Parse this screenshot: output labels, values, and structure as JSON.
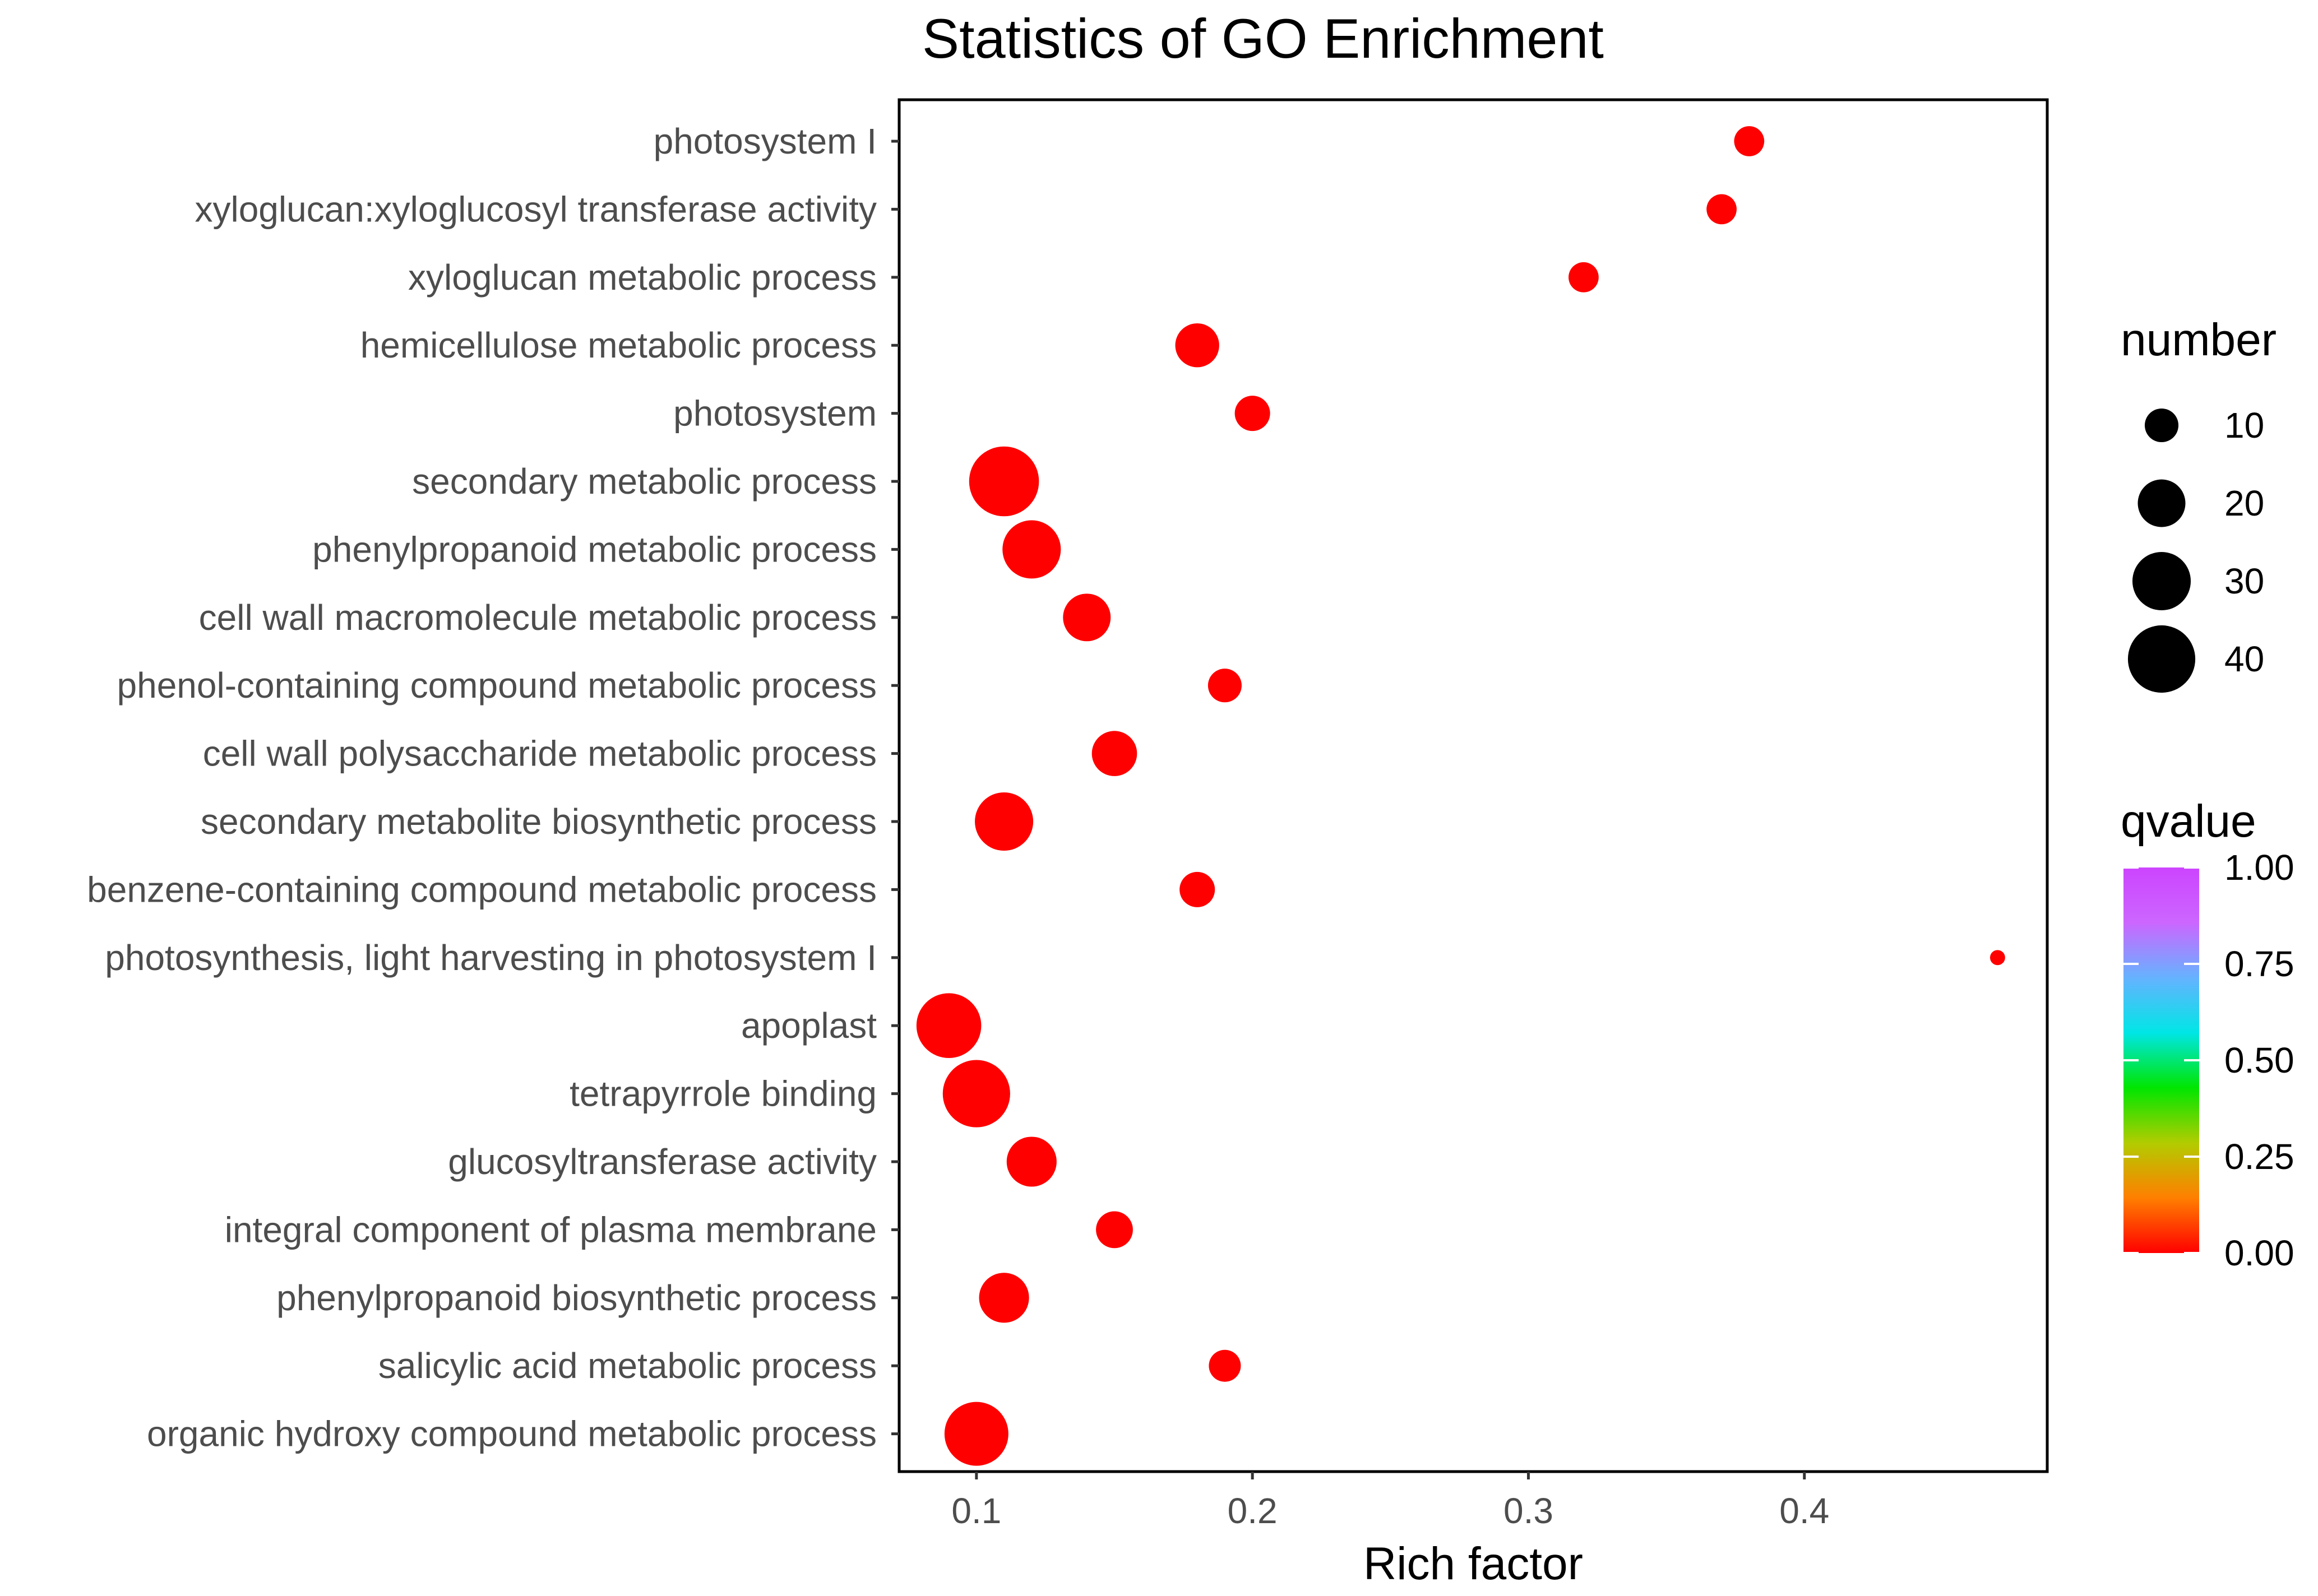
{
  "chart_data": {
    "type": "scatter",
    "title": "Statistics of GO Enrichment",
    "xlabel": "Rich factor",
    "ylabel": "",
    "xlim": [
      0.072,
      0.488
    ],
    "x_ticks": [
      0.1,
      0.2,
      0.3,
      0.4
    ],
    "x_tick_labels": [
      "0.1",
      "0.2",
      "0.3",
      "0.4"
    ],
    "grid": false,
    "point_color": "#ff0000",
    "points": [
      {
        "term": "photosystem I",
        "rich_factor": 0.38,
        "number": 8,
        "qvalue": 0.0
      },
      {
        "term": "xyloglucan:xyloglucosyl transferase activity",
        "rich_factor": 0.37,
        "number": 8,
        "qvalue": 0.0
      },
      {
        "term": "xyloglucan metabolic process",
        "rich_factor": 0.32,
        "number": 8,
        "qvalue": 0.0
      },
      {
        "term": "hemicellulose metabolic process",
        "rich_factor": 0.18,
        "number": 17,
        "qvalue": 0.0
      },
      {
        "term": "photosystem",
        "rich_factor": 0.2,
        "number": 11,
        "qvalue": 0.0
      },
      {
        "term": "secondary metabolic process",
        "rich_factor": 0.11,
        "number": 43,
        "qvalue": 0.0
      },
      {
        "term": "phenylpropanoid metabolic process",
        "rich_factor": 0.12,
        "number": 30,
        "qvalue": 0.0
      },
      {
        "term": "cell wall macromolecule metabolic process",
        "rich_factor": 0.14,
        "number": 20,
        "qvalue": 0.0
      },
      {
        "term": "phenol-containing compound metabolic process",
        "rich_factor": 0.19,
        "number": 10,
        "qvalue": 0.0
      },
      {
        "term": "cell wall polysaccharide metabolic process",
        "rich_factor": 0.15,
        "number": 18,
        "qvalue": 0.0
      },
      {
        "term": "secondary metabolite biosynthetic process",
        "rich_factor": 0.11,
        "number": 30,
        "qvalue": 0.0
      },
      {
        "term": "benzene-containing compound metabolic process",
        "rich_factor": 0.18,
        "number": 11,
        "qvalue": 0.0
      },
      {
        "term": "photosynthesis, light harvesting in photosystem I",
        "rich_factor": 0.47,
        "number": 2,
        "qvalue": 0.0
      },
      {
        "term": "apoplast",
        "rich_factor": 0.09,
        "number": 37,
        "qvalue": 0.0
      },
      {
        "term": "tetrapyrrole binding",
        "rich_factor": 0.1,
        "number": 40,
        "qvalue": 0.0
      },
      {
        "term": "glucosyltransferase activity",
        "rich_factor": 0.12,
        "number": 22,
        "qvalue": 0.0
      },
      {
        "term": "integral component of plasma membrane",
        "rich_factor": 0.15,
        "number": 12,
        "qvalue": 0.0
      },
      {
        "term": "phenylpropanoid biosynthetic process",
        "rich_factor": 0.11,
        "number": 22,
        "qvalue": 0.0
      },
      {
        "term": "salicylic acid metabolic process",
        "rich_factor": 0.19,
        "number": 9,
        "qvalue": 0.0
      },
      {
        "term": "organic hydroxy compound metabolic process",
        "rich_factor": 0.1,
        "number": 36,
        "qvalue": 0.0
      }
    ],
    "size_legend": {
      "title": "number",
      "values": [
        10,
        20,
        30,
        40
      ],
      "labels": [
        "10",
        "20",
        "30",
        "40"
      ]
    },
    "color_legend": {
      "title": "qvalue",
      "range": [
        0.0,
        1.0
      ],
      "ticks": [
        1.0,
        0.75,
        0.5,
        0.25,
        0.0
      ],
      "tick_labels": [
        "1.00",
        "0.75",
        "0.50",
        "0.25",
        "0.00"
      ],
      "gradient_colors": [
        "#ff0000",
        "#ff7f00",
        "#b2cc00",
        "#00e600",
        "#00e6e6",
        "#66b2ff",
        "#cc66ff",
        "#cc44ff"
      ]
    }
  }
}
